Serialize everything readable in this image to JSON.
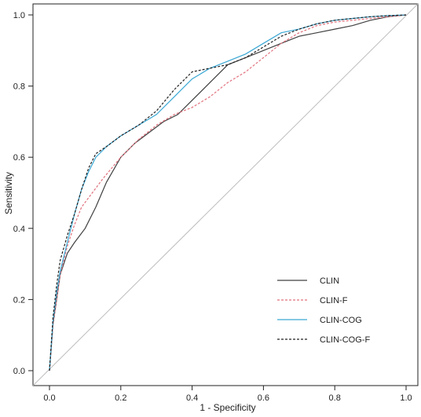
{
  "chart_data": {
    "type": "line",
    "title": "",
    "xlabel": "1 - Specificity",
    "ylabel": "Sensitivity",
    "xlim": [
      0,
      1
    ],
    "ylim": [
      0,
      1
    ],
    "xticks": [
      "0.0",
      "0.2",
      "0.4",
      "0.6",
      "0.8",
      "1.0"
    ],
    "yticks": [
      "0.0",
      "0.2",
      "0.4",
      "0.6",
      "0.8",
      "1.0"
    ],
    "grid": false,
    "legend_position": "bottom-right",
    "reference_line": {
      "type": "diagonal",
      "color": "#bdbdbd"
    },
    "series": [
      {
        "name": "CLIN",
        "color": "#404040",
        "dash": "solid",
        "x": [
          0,
          0.01,
          0.02,
          0.03,
          0.05,
          0.07,
          0.1,
          0.13,
          0.16,
          0.2,
          0.24,
          0.28,
          0.32,
          0.36,
          0.4,
          0.45,
          0.5,
          0.55,
          0.6,
          0.65,
          0.7,
          0.75,
          0.8,
          0.85,
          0.9,
          0.95,
          1.0
        ],
        "y": [
          0,
          0.13,
          0.2,
          0.27,
          0.33,
          0.36,
          0.4,
          0.46,
          0.53,
          0.6,
          0.64,
          0.67,
          0.7,
          0.72,
          0.76,
          0.81,
          0.86,
          0.88,
          0.9,
          0.92,
          0.94,
          0.95,
          0.96,
          0.97,
          0.985,
          0.995,
          1.0
        ]
      },
      {
        "name": "CLIN-F",
        "color": "#e0707c",
        "dash": "dashed",
        "x": [
          0,
          0.01,
          0.02,
          0.03,
          0.05,
          0.07,
          0.09,
          0.12,
          0.15,
          0.2,
          0.25,
          0.3,
          0.35,
          0.4,
          0.45,
          0.5,
          0.55,
          0.6,
          0.65,
          0.7,
          0.75,
          0.8,
          0.85,
          0.9,
          0.95,
          1.0
        ],
        "y": [
          0,
          0.13,
          0.2,
          0.27,
          0.35,
          0.41,
          0.46,
          0.5,
          0.54,
          0.6,
          0.65,
          0.69,
          0.72,
          0.74,
          0.77,
          0.81,
          0.84,
          0.88,
          0.92,
          0.95,
          0.97,
          0.98,
          0.985,
          0.99,
          0.995,
          1.0
        ]
      },
      {
        "name": "CLIN-COG",
        "color": "#3aa7d4",
        "dash": "solid",
        "x": [
          0,
          0.01,
          0.02,
          0.03,
          0.05,
          0.07,
          0.09,
          0.11,
          0.13,
          0.16,
          0.2,
          0.25,
          0.3,
          0.35,
          0.4,
          0.45,
          0.5,
          0.55,
          0.6,
          0.65,
          0.7,
          0.75,
          0.8,
          0.85,
          0.9,
          0.95,
          1.0
        ],
        "y": [
          0,
          0.14,
          0.22,
          0.28,
          0.36,
          0.44,
          0.51,
          0.56,
          0.6,
          0.63,
          0.66,
          0.69,
          0.72,
          0.77,
          0.82,
          0.85,
          0.87,
          0.89,
          0.92,
          0.95,
          0.96,
          0.975,
          0.985,
          0.99,
          0.995,
          0.998,
          1.0
        ]
      },
      {
        "name": "CLIN-COG-F",
        "color": "#202020",
        "dash": "dashed",
        "x": [
          0,
          0.01,
          0.02,
          0.03,
          0.05,
          0.07,
          0.09,
          0.11,
          0.13,
          0.16,
          0.2,
          0.25,
          0.3,
          0.35,
          0.4,
          0.45,
          0.5,
          0.55,
          0.6,
          0.65,
          0.7,
          0.75,
          0.8,
          0.85,
          0.9,
          0.95,
          1.0
        ],
        "y": [
          0,
          0.15,
          0.24,
          0.31,
          0.38,
          0.44,
          0.51,
          0.57,
          0.61,
          0.63,
          0.66,
          0.69,
          0.73,
          0.79,
          0.84,
          0.85,
          0.86,
          0.88,
          0.91,
          0.94,
          0.96,
          0.975,
          0.985,
          0.99,
          0.995,
          0.998,
          1.0
        ]
      }
    ]
  }
}
